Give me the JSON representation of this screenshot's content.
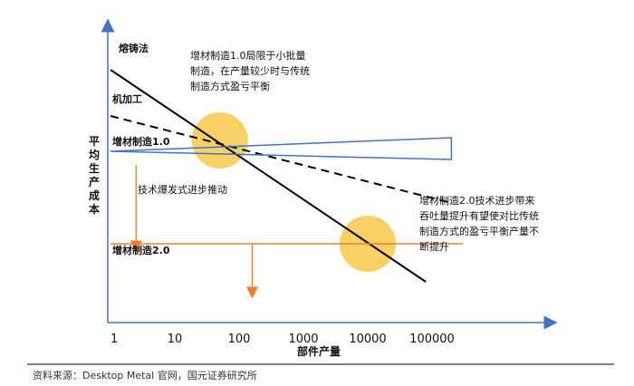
{
  "chart_data": {
    "type": "line",
    "xlabel": "部件产量",
    "ylabel": "平均生产成本",
    "x_scale": "log",
    "x_ticks": [
      "1",
      "10",
      "100",
      "1000",
      "10000",
      "100000"
    ],
    "series": [
      {
        "name": "熔铸法",
        "style": "solid",
        "color": "#000000",
        "points": [
          [
            1,
            9.3
          ],
          [
            80000,
            1.5
          ]
        ]
      },
      {
        "name": "机加工",
        "style": "dashed",
        "color": "#000000",
        "points": [
          [
            1,
            7.6
          ],
          [
            200000,
            4.4
          ]
        ]
      },
      {
        "name": "增材制造1.0",
        "style": "wedge",
        "color": "#4472c4",
        "points": [
          [
            1,
            6.3
          ],
          [
            200000,
            6.3
          ]
        ],
        "upper_end": 6.8,
        "lower_end": 6.0
      },
      {
        "name": "增材制造2.0",
        "style": "solid",
        "color": "#ed7d31",
        "points": [
          [
            1,
            2.9
          ],
          [
            300000,
            2.9
          ]
        ]
      }
    ],
    "annotations": [
      {
        "text_lines": [
          "增材制造1.0局限于小批量",
          "制造，在产量较少时与传统",
          "制造方式盈亏平衡"
        ]
      },
      {
        "text": "技术爆发式进步推动"
      },
      {
        "text_lines": [
          "增材制造2.0技术进步带来",
          "吞吐量提升有望使对比传统",
          "制造方式的盈亏平衡产量不",
          "断提升"
        ]
      }
    ],
    "highlights": [
      {
        "x": 50,
        "y": 6.7,
        "color": "#f8c848"
      },
      {
        "x": 10000,
        "y": 2.9,
        "color": "#f8c848"
      }
    ],
    "arrows": [
      {
        "x": 2.5,
        "from_y": 5.8,
        "to_y": 3.0,
        "color": "#ed7d31"
      },
      {
        "x": 160,
        "from_y": 2.9,
        "to_y": 1.3,
        "color": "#ed7d31"
      }
    ]
  },
  "colors": {
    "axis": "#4472c4",
    "highlight": "#f8c848",
    "orange": "#ed7d31",
    "blue": "#4472c4"
  },
  "source": "资料来源：Desktop Metal 官网，国元证券研究所"
}
